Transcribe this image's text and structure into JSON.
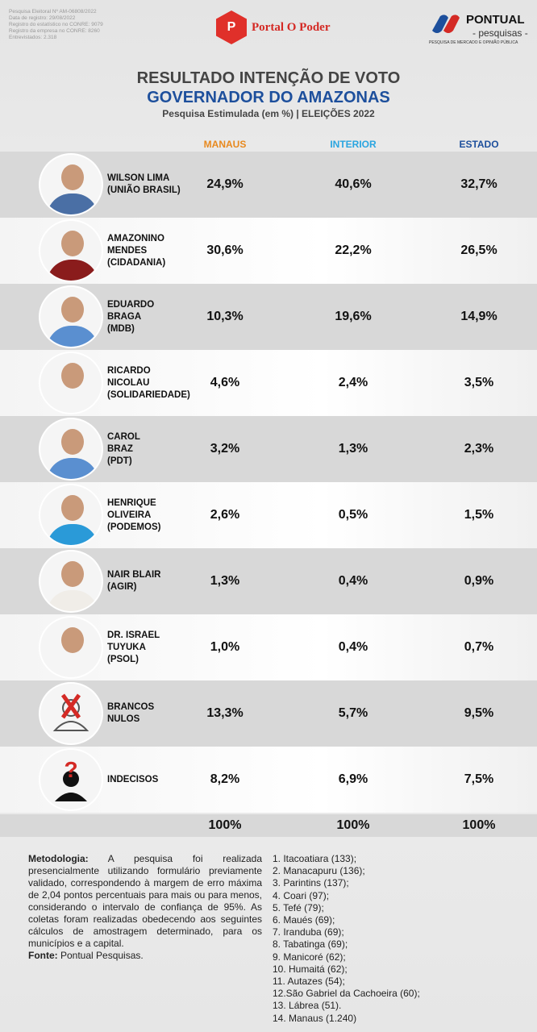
{
  "header": {
    "meta": [
      "Pesquisa Eleitoral Nº AM-06808/2022",
      "Data de registro: 29/08/2022",
      "Registro do estatístico no CONRE: 9079",
      "Registro da empresa no CONRE: 8260",
      "Entrevistados: 2.318"
    ],
    "portal_logo": "Portal O Poder",
    "pontual_name": "PONTUAL",
    "pontual_sub": "- pesquisas -",
    "pontual_tag": "PESQUISA DE MERCADO E OPINIÃO PÚBLICA"
  },
  "title": {
    "line1": "RESULTADO INTENÇÃO DE VOTO",
    "line2": "GOVERNADOR DO AMAZONAS",
    "line3": "Pesquisa Estimulada (em %) | ELEIÇÕES 2022"
  },
  "colors": {
    "manaus": "#e8891e",
    "interior": "#2aa5e0",
    "estado": "#1d4f9c",
    "accent": "#1d4f9c",
    "portal": "#d42a25"
  },
  "chart_data": {
    "type": "table",
    "columns": [
      "MANAUS",
      "INTERIOR",
      "ESTADO"
    ],
    "rows": [
      {
        "label": "WILSON LIMA\n(UNIÃO BRASIL)",
        "values": [
          "24,9%",
          "40,6%",
          "32,7%"
        ]
      },
      {
        "label": "AMAZONINO\nMENDES\n(CIDADANIA)",
        "values": [
          "30,6%",
          "22,2%",
          "26,5%"
        ]
      },
      {
        "label": "EDUARDO\nBRAGA\n(MDB)",
        "values": [
          "10,3%",
          "19,6%",
          "14,9%"
        ]
      },
      {
        "label": "RICARDO\nNICOLAU\n(SOLIDARIEDADE)",
        "values": [
          "4,6%",
          "2,4%",
          "3,5%"
        ]
      },
      {
        "label": "CAROL\nBRAZ\n(PDT)",
        "values": [
          "3,2%",
          "1,3%",
          "2,3%"
        ]
      },
      {
        "label": "HENRIQUE\nOLIVEIRA\n(PODEMOS)",
        "values": [
          "2,6%",
          "0,5%",
          "1,5%"
        ]
      },
      {
        "label": "NAIR BLAIR\n(AGIR)",
        "values": [
          "1,3%",
          "0,4%",
          "0,9%"
        ]
      },
      {
        "label": "DR. ISRAEL\nTUYUKA\n(PSOL)",
        "values": [
          "1,0%",
          "0,4%",
          "0,7%"
        ]
      },
      {
        "label": "BRANCOS\nNULOS",
        "values": [
          "13,3%",
          "5,7%",
          "9,5%"
        ]
      },
      {
        "label": "INDECISOS",
        "values": [
          "8,2%",
          "6,9%",
          "7,5%"
        ]
      }
    ],
    "totals": [
      "100%",
      "100%",
      "100%"
    ]
  },
  "methodology": {
    "label": "Metodologia:",
    "text": " A pesquisa foi realizada presencialmente utilizando formulário previamente validado, correspondendo à margem de erro máxima de 2,04 pontos percentuais para mais ou para menos, considerando o intervalo de confiança de 95%. As coletas foram realizadas obedecendo aos seguintes cálculos de amostragem determinado, para os municípios e a capital.",
    "source_label": "Fonte:",
    "source": " Pontual Pesquisas."
  },
  "municipalities": [
    "1. Itacoatiara (133);",
    "2. Manacapuru (136);",
    "3. Parintins (137);",
    "4. Coari (97);",
    "5. Tefé (79);",
    "6. Maués (69);",
    "7. Iranduba (69);",
    "8. Tabatinga (69);",
    "9. Manicoré (62);",
    "10. Humaitá (62);",
    "11. Autazes (54);",
    "12.São Gabriel da Cachoeira (60);",
    "13. Lábrea (51).",
    "14. Manaus (1.240)"
  ]
}
